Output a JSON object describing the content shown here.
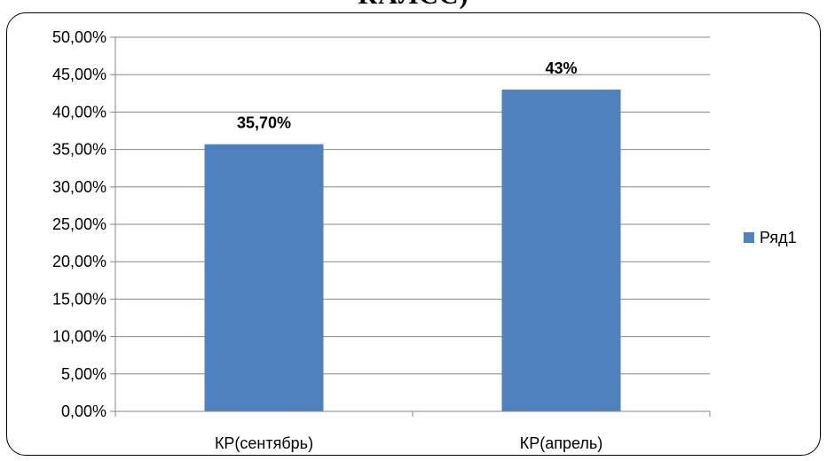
{
  "page": {
    "clipped_heading": "КАЛСС)"
  },
  "chart_data": {
    "type": "bar",
    "title": "",
    "xlabel": "",
    "ylabel": "",
    "categories": [
      "КР(сентябрь)",
      "КР(апрель)"
    ],
    "series": [
      {
        "name": "Ряд1",
        "color": "#4F81BD",
        "values": [
          0.357,
          0.43
        ],
        "data_labels": [
          "35,70%",
          "43%"
        ]
      }
    ],
    "ylim": [
      0,
      0.5
    ],
    "y_ticks": [
      0,
      0.05,
      0.1,
      0.15,
      0.2,
      0.25,
      0.3,
      0.35,
      0.4,
      0.45,
      0.5
    ],
    "y_tick_labels": [
      "0,00%",
      "5,00%",
      "10,00%",
      "15,00%",
      "20,00%",
      "25,00%",
      "30,00%",
      "35,00%",
      "40,00%",
      "45,00%",
      "50,00%"
    ],
    "grid": true,
    "gridline_color": "#868686",
    "legend_position": "right"
  }
}
